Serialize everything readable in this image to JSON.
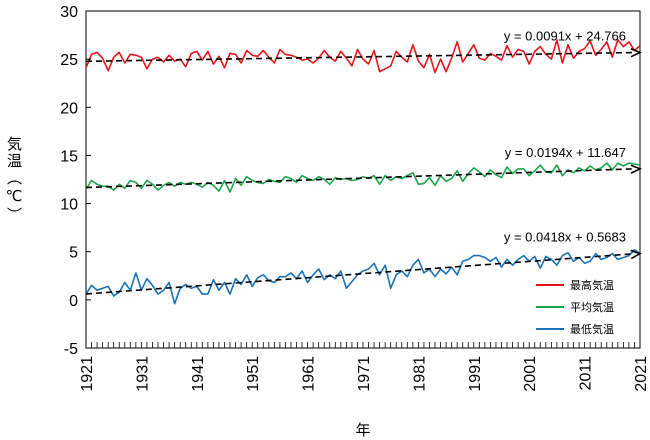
{
  "chart_data": {
    "type": "line",
    "xlabel": "年",
    "ylabel": "気温（℃）",
    "xlim": [
      1921,
      2021
    ],
    "ylim": [
      -5,
      30
    ],
    "yticks": [
      30,
      25,
      20,
      15,
      10,
      5,
      0,
      -5
    ],
    "xticks": [
      1921,
      1931,
      1941,
      1951,
      1961,
      1971,
      1981,
      1991,
      2001,
      2011,
      2021
    ],
    "grid": false,
    "legend": "right",
    "series": [
      {
        "name": "最高気温",
        "color": "#e8141b",
        "trend": {
          "slope": 0.0091,
          "intercept": 24.766,
          "label": "y =  0.0091x +  24.766"
        },
        "values": [
          24.1,
          25.5,
          25.7,
          25.1,
          23.8,
          25.2,
          25.7,
          24.6,
          25.5,
          25.4,
          25.2,
          24.0,
          25.0,
          25.2,
          24.7,
          25.4,
          24.8,
          25.0,
          24.2,
          25.6,
          25.8,
          24.9,
          25.8,
          24.5,
          25.3,
          24.1,
          25.6,
          25.5,
          24.6,
          25.9,
          25.4,
          25.3,
          25.9,
          25.2,
          24.6,
          26.0,
          25.5,
          25.4,
          25.2,
          24.9,
          25.0,
          24.6,
          25.1,
          25.9,
          25.2,
          24.8,
          25.8,
          25.1,
          24.3,
          26.0,
          25.0,
          24.5,
          25.9,
          23.7,
          24.0,
          24.3,
          25.8,
          25.2,
          24.7,
          26.5,
          24.8,
          24.1,
          25.5,
          23.6,
          25.0,
          23.7,
          25.1,
          26.8,
          24.7,
          25.6,
          26.5,
          25.1,
          24.9,
          25.6,
          25.3,
          24.9,
          26.4,
          25.2,
          26.0,
          25.8,
          24.5,
          25.8,
          26.3,
          25.5,
          25.0,
          27.0,
          24.6,
          26.5,
          25.1,
          25.8,
          26.1,
          26.9,
          25.4,
          26.0,
          26.8,
          25.2,
          27.0,
          26.3,
          26.8,
          25.9,
          26.4
        ]
      },
      {
        "name": "平均気温",
        "color": "#1ba64a",
        "trend": {
          "slope": 0.0194,
          "intercept": 11.647,
          "label": "y =  0.0194x +  11.647"
        },
        "values": [
          11.5,
          12.4,
          12.0,
          11.8,
          11.8,
          11.4,
          12.0,
          11.6,
          12.4,
          12.2,
          11.6,
          12.4,
          12.0,
          11.4,
          11.9,
          12.2,
          11.8,
          12.2,
          12.0,
          12.2,
          12.0,
          11.7,
          12.2,
          11.9,
          11.3,
          12.4,
          11.2,
          12.6,
          11.9,
          12.8,
          12.4,
          12.2,
          12.1,
          12.5,
          12.3,
          12.2,
          12.8,
          12.6,
          12.2,
          12.9,
          12.6,
          12.4,
          12.8,
          12.5,
          12.0,
          12.7,
          12.5,
          12.6,
          12.4,
          12.5,
          12.8,
          12.6,
          12.9,
          12.0,
          12.9,
          12.4,
          12.8,
          12.6,
          12.9,
          13.2,
          12.0,
          12.1,
          12.7,
          11.9,
          12.9,
          12.3,
          12.6,
          13.4,
          12.3,
          13.1,
          13.7,
          13.3,
          12.8,
          13.5,
          13.0,
          12.7,
          13.8,
          13.1,
          13.6,
          13.6,
          12.9,
          13.4,
          14.0,
          13.3,
          13.2,
          14.0,
          12.9,
          13.5,
          13.2,
          13.7,
          13.4,
          13.9,
          13.5,
          13.7,
          14.2,
          13.5,
          14.2,
          13.9,
          14.2,
          14.1,
          14.0
        ]
      },
      {
        "name": "最低気温",
        "color": "#1a72b8",
        "trend": {
          "slope": 0.0418,
          "intercept": 0.5683,
          "label": "y =  0.0418x +  0.5683"
        },
        "values": [
          0.6,
          1.5,
          1.0,
          1.2,
          1.4,
          0.4,
          0.8,
          1.8,
          1.0,
          2.8,
          1.0,
          2.2,
          1.5,
          0.6,
          1.0,
          1.8,
          -0.4,
          1.2,
          1.6,
          1.2,
          1.4,
          0.6,
          0.6,
          2.1,
          1.0,
          1.8,
          0.6,
          2.2,
          1.6,
          2.6,
          1.4,
          2.3,
          2.6,
          2.0,
          1.8,
          2.4,
          2.4,
          2.8,
          2.2,
          3.0,
          1.8,
          2.6,
          3.2,
          2.1,
          2.6,
          2.2,
          3.0,
          1.2,
          1.9,
          2.6,
          3.0,
          3.2,
          3.8,
          2.6,
          3.6,
          1.2,
          2.6,
          3.0,
          2.4,
          3.6,
          4.2,
          2.8,
          3.2,
          2.4,
          3.2,
          2.7,
          3.4,
          2.6,
          4.0,
          4.2,
          4.6,
          4.6,
          4.4,
          4.0,
          4.4,
          3.4,
          4.2,
          3.6,
          4.2,
          4.6,
          4.0,
          4.5,
          3.3,
          4.5,
          4.2,
          3.6,
          4.6,
          4.9,
          4.0,
          4.4,
          3.8,
          4.0,
          4.8,
          4.2,
          4.4,
          4.8,
          4.2,
          4.4,
          4.6,
          5.2,
          4.8
        ]
      }
    ]
  }
}
